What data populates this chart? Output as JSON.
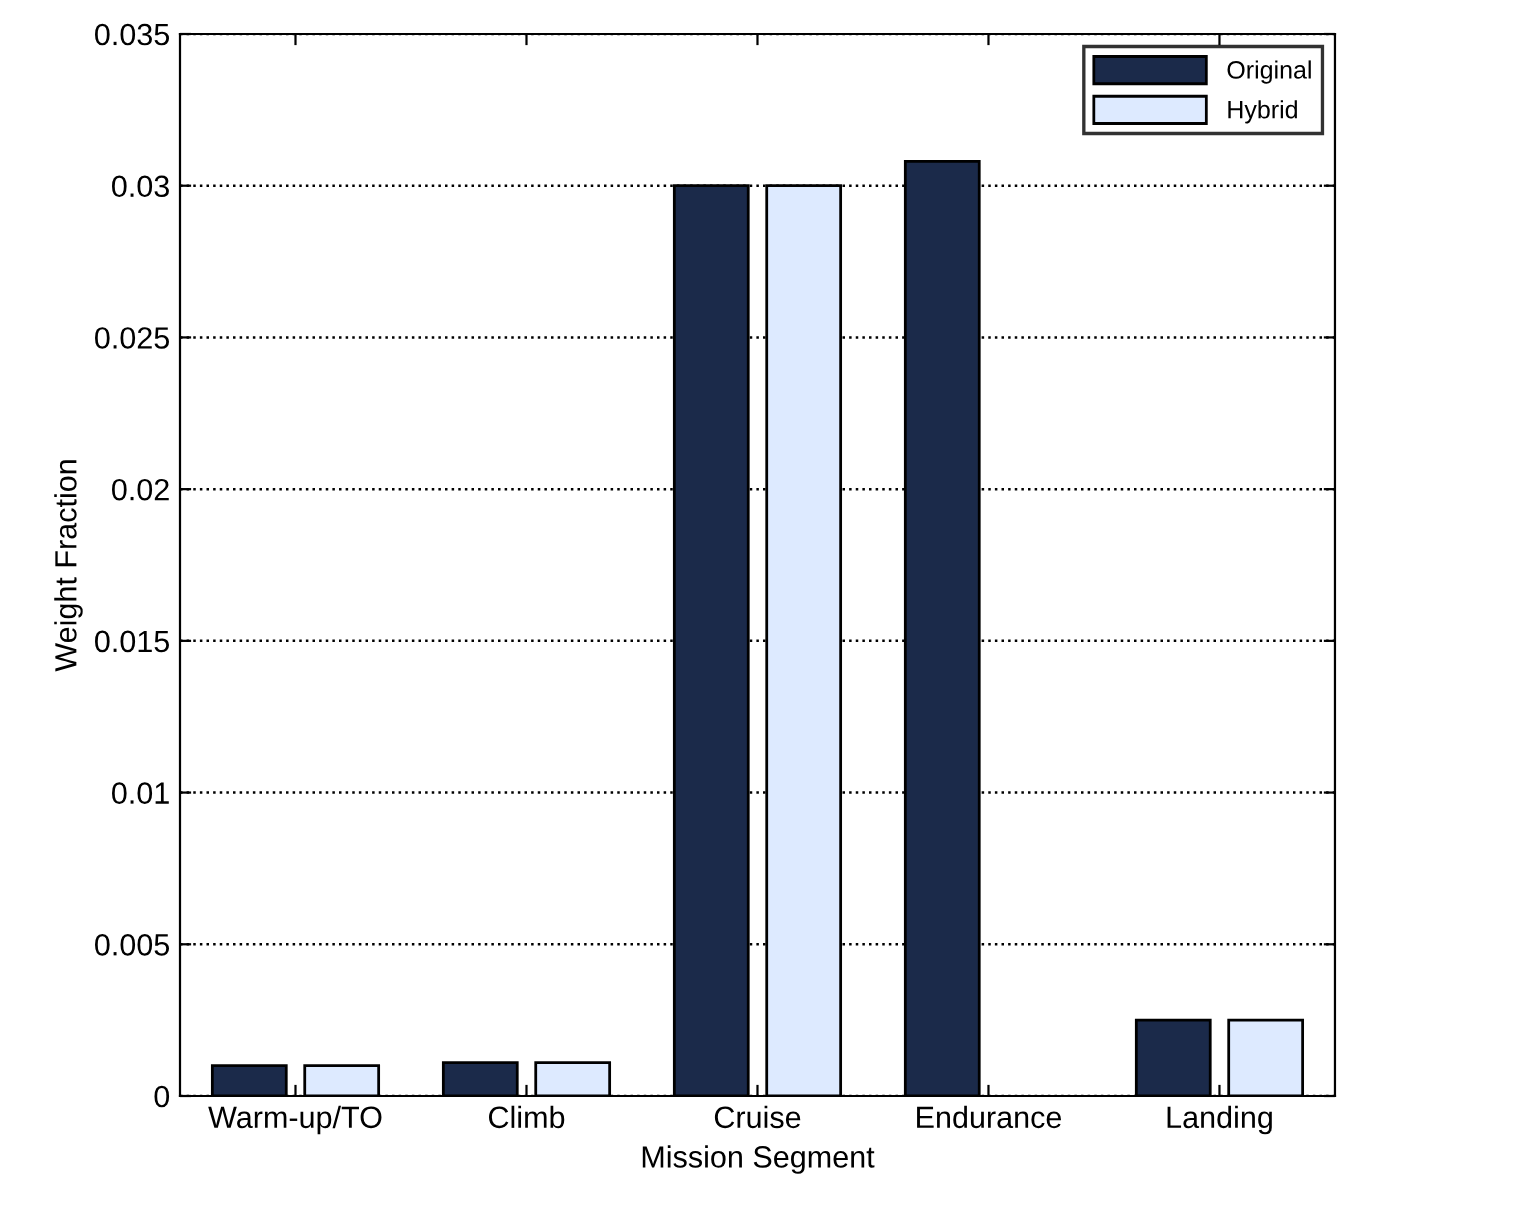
{
  "chart_data": {
    "type": "bar",
    "xlabel": "Mission Segment",
    "ylabel": "Weight Fraction",
    "categories": [
      "Warm-up/TO",
      "Climb",
      "Cruise",
      "Endurance",
      "Landing"
    ],
    "series": [
      {
        "name": "Original",
        "color": "#1b2a4a",
        "values": [
          0.001,
          0.0011,
          0.03,
          0.0308,
          0.0025
        ]
      },
      {
        "name": "Hybrid",
        "color": "#ddeaff",
        "values": [
          0.001,
          0.0011,
          0.03,
          null,
          0.0025
        ]
      }
    ],
    "ylim": [
      0,
      0.035
    ],
    "yticks": [
      0,
      0.005,
      0.01,
      0.015,
      0.02,
      0.025,
      0.03,
      0.035
    ],
    "grid": "y",
    "legend": "top right"
  }
}
